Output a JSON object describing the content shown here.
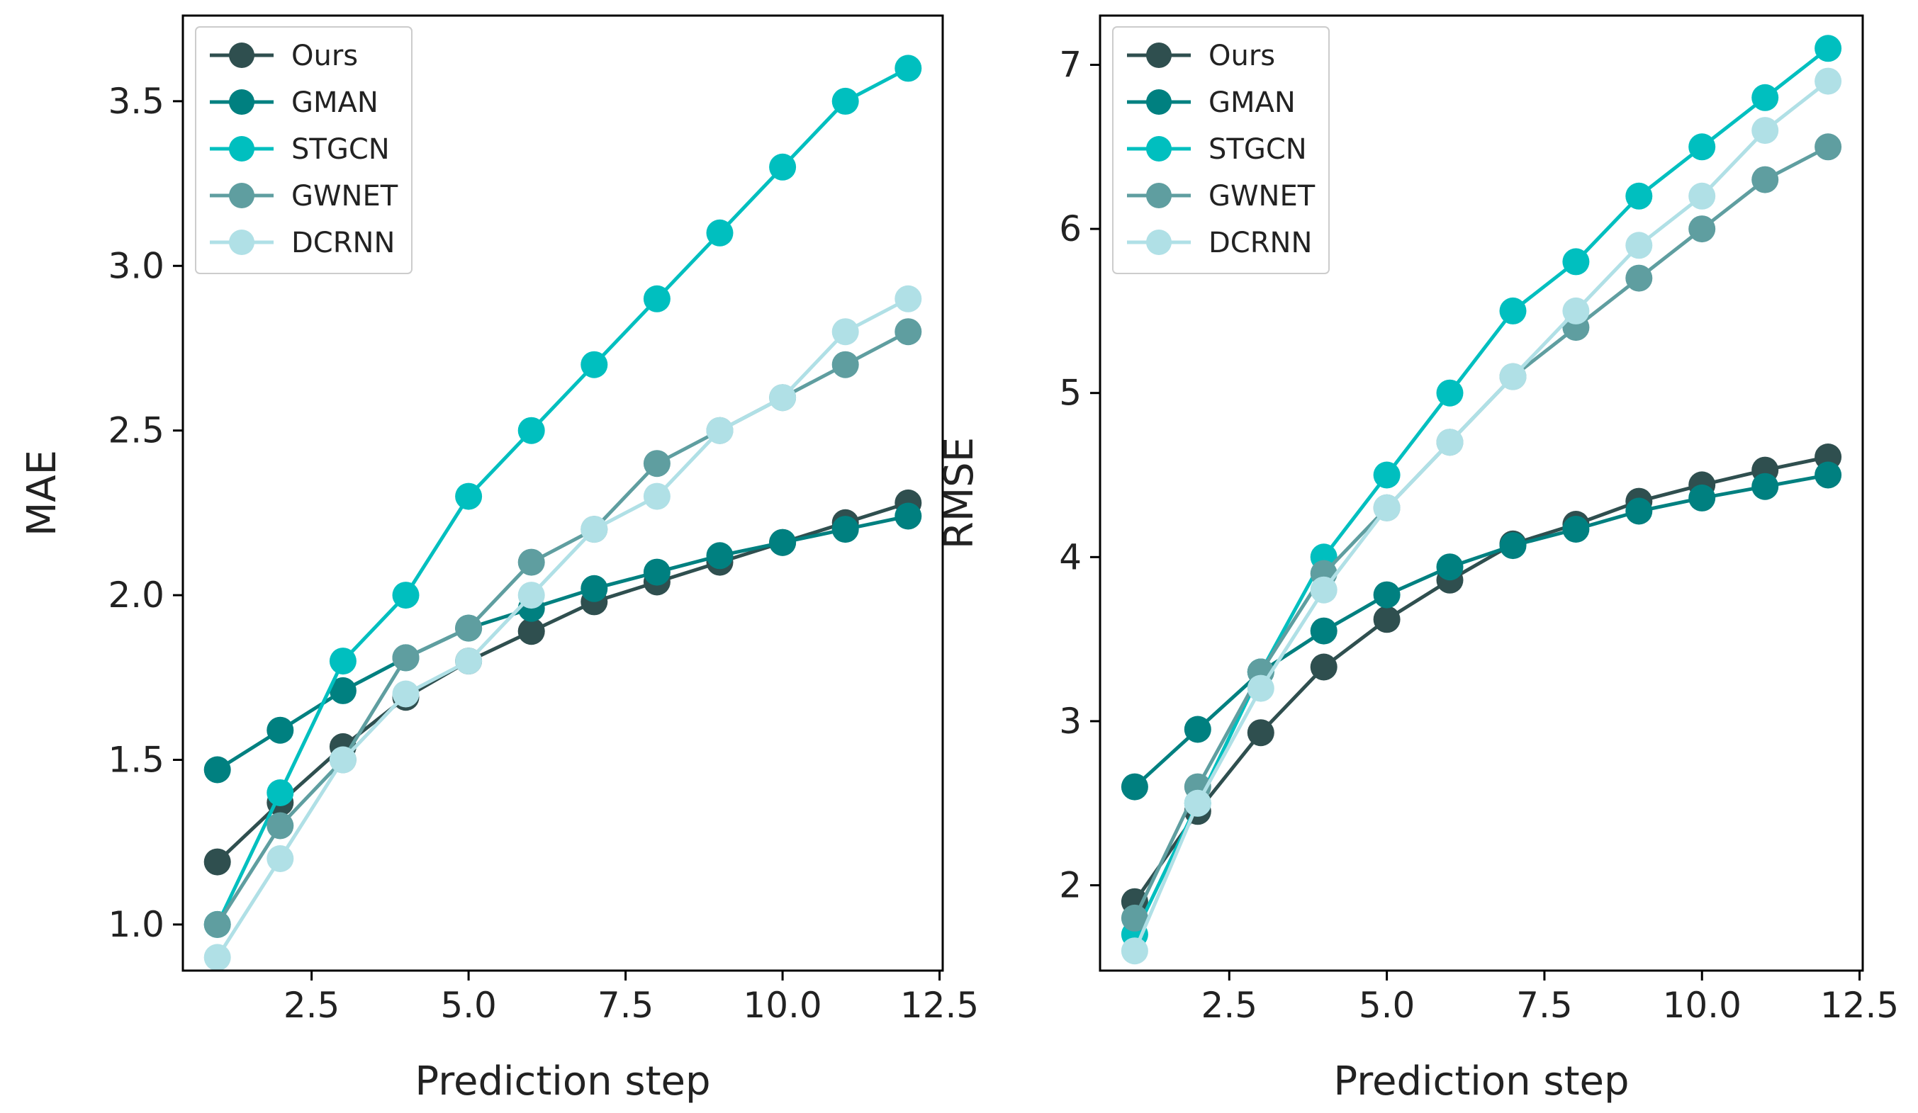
{
  "chart_data": [
    {
      "type": "line",
      "title": "",
      "xlabel": "Prediction step",
      "ylabel": "MAE",
      "xlim": [
        0.45,
        12.55
      ],
      "ylim": [
        0.86,
        3.76
      ],
      "xticks": [
        2.5,
        5.0,
        7.5,
        10.0,
        12.5
      ],
      "xtick_labels": [
        "2.5",
        "5.0",
        "7.5",
        "10.0",
        "12.5"
      ],
      "yticks": [
        1.0,
        1.5,
        2.0,
        2.5,
        3.0,
        3.5
      ],
      "ytick_labels": [
        "1.0",
        "1.5",
        "2.0",
        "2.5",
        "3.0",
        "3.5"
      ],
      "legend_position": "top-left",
      "grid": false,
      "x": [
        1,
        2,
        3,
        4,
        5,
        6,
        7,
        8,
        9,
        10,
        11,
        12
      ],
      "series": [
        {
          "name": "Ours",
          "color": "#2f4f4f",
          "values": [
            1.19,
            1.37,
            1.54,
            1.69,
            1.8,
            1.89,
            1.98,
            2.04,
            2.1,
            2.16,
            2.22,
            2.28
          ]
        },
        {
          "name": "GMAN",
          "color": "#008080",
          "values": [
            1.47,
            1.59,
            1.71,
            1.81,
            1.9,
            1.96,
            2.02,
            2.07,
            2.12,
            2.16,
            2.2,
            2.24
          ]
        },
        {
          "name": "STGCN",
          "color": "#00bfbf",
          "values": [
            1.0,
            1.4,
            1.8,
            2.0,
            2.3,
            2.5,
            2.7,
            2.9,
            3.1,
            3.3,
            3.5,
            3.6
          ]
        },
        {
          "name": "GWNET",
          "color": "#5f9ea0",
          "values": [
            1.0,
            1.3,
            1.5,
            1.81,
            1.9,
            2.1,
            2.2,
            2.4,
            2.5,
            2.6,
            2.7,
            2.8
          ]
        },
        {
          "name": "DCRNN",
          "color": "#b0e0e6",
          "values": [
            0.9,
            1.2,
            1.5,
            1.7,
            1.8,
            2.0,
            2.2,
            2.3,
            2.5,
            2.6,
            2.8,
            2.9
          ]
        }
      ]
    },
    {
      "type": "line",
      "title": "",
      "xlabel": "Prediction step",
      "ylabel": "RMSE",
      "xlim": [
        0.45,
        12.55
      ],
      "ylim": [
        1.48,
        7.3
      ],
      "xticks": [
        2.5,
        5.0,
        7.5,
        10.0,
        12.5
      ],
      "xtick_labels": [
        "2.5",
        "5.0",
        "7.5",
        "10.0",
        "12.5"
      ],
      "yticks": [
        2,
        3,
        4,
        5,
        6,
        7
      ],
      "ytick_labels": [
        "2",
        "3",
        "4",
        "5",
        "6",
        "7"
      ],
      "legend_position": "top-left",
      "grid": false,
      "x": [
        1,
        2,
        3,
        4,
        5,
        6,
        7,
        8,
        9,
        10,
        11,
        12
      ],
      "series": [
        {
          "name": "Ours",
          "color": "#2f4f4f",
          "values": [
            1.9,
            2.45,
            2.93,
            3.33,
            3.62,
            3.86,
            4.08,
            4.2,
            4.34,
            4.44,
            4.53,
            4.61
          ]
        },
        {
          "name": "GMAN",
          "color": "#008080",
          "values": [
            2.6,
            2.95,
            3.3,
            3.55,
            3.77,
            3.94,
            4.07,
            4.17,
            4.28,
            4.36,
            4.43,
            4.5
          ]
        },
        {
          "name": "STGCN",
          "color": "#00bfbf",
          "values": [
            1.7,
            2.5,
            3.3,
            4.0,
            4.5,
            5.0,
            5.5,
            5.8,
            6.2,
            6.5,
            6.8,
            7.1
          ]
        },
        {
          "name": "GWNET",
          "color": "#5f9ea0",
          "values": [
            1.8,
            2.6,
            3.3,
            3.9,
            4.3,
            4.7,
            5.1,
            5.4,
            5.7,
            6.0,
            6.3,
            6.5
          ]
        },
        {
          "name": "DCRNN",
          "color": "#b0e0e6",
          "values": [
            1.6,
            2.5,
            3.2,
            3.8,
            4.3,
            4.7,
            5.1,
            5.5,
            5.9,
            6.2,
            6.6,
            6.9
          ]
        }
      ]
    }
  ]
}
